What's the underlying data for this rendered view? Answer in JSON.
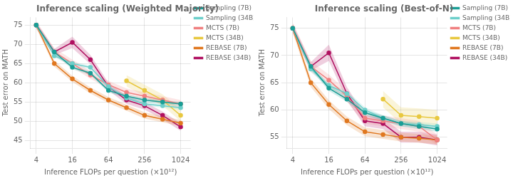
{
  "chart_data": [
    {
      "type": "line",
      "title": "Inference scaling (Weighted Majority)",
      "xlabel": "Inference FLOPs per question (×10¹²)",
      "ylabel": "Test error on MATH",
      "log": "x",
      "xlim": [
        3.2,
        1500
      ],
      "xticks": [
        4,
        16,
        64,
        256,
        1024
      ],
      "ylim": [
        43,
        77
      ],
      "yticks": [
        45,
        50,
        55,
        60,
        65,
        70,
        75
      ],
      "grid": true,
      "legend": "upper right",
      "series": [
        {
          "name": "Sampling (7B)",
          "color": "#1a9e96",
          "marker": "circle",
          "x": [
            4,
            8,
            16,
            32,
            64,
            128,
            256,
            512,
            1024
          ],
          "values": [
            75.0,
            68.0,
            64.0,
            62.5,
            58.0,
            56.5,
            55.5,
            55.0,
            54.5
          ],
          "yerr": [
            0.5,
            0.5,
            0.5,
            0.5,
            0.5,
            0.5,
            0.5,
            0.5,
            0.5
          ]
        },
        {
          "name": "Sampling (34B)",
          "color": "#6dcfca",
          "marker": "circle",
          "x": [
            4,
            8,
            16,
            32,
            64,
            128,
            256,
            512,
            1024
          ],
          "values": [
            75.0,
            67.0,
            65.0,
            64.0,
            59.0,
            56.0,
            54.5,
            54.0,
            53.5
          ],
          "yerr": [
            0.5,
            0.5,
            0.5,
            0.5,
            0.5,
            0.5,
            0.5,
            0.5,
            0.5
          ]
        },
        {
          "name": "MCTS (7B)",
          "color": "#f08080",
          "marker": "circle",
          "x": [
            4,
            8,
            16,
            32,
            64,
            128,
            256,
            512,
            1024
          ],
          "values": [
            75.0,
            68.0,
            65.0,
            62.0,
            59.5,
            57.5,
            56.5,
            55.5,
            54.5
          ],
          "yerr": [
            1.0,
            1.0,
            1.0,
            1.0,
            1.0,
            1.0,
            1.0,
            1.0,
            1.0
          ]
        },
        {
          "name": "MCTS (34B)",
          "color": "#e8c840",
          "marker": "circle",
          "x": [
            128,
            256,
            512,
            1024
          ],
          "values": [
            60.5,
            58.0,
            55.5,
            51.5
          ],
          "yerr": [
            1.5,
            1.5,
            1.5,
            1.5
          ]
        },
        {
          "name": "REBASE (7B)",
          "color": "#e07820",
          "marker": "circle",
          "x": [
            4,
            8,
            16,
            32,
            64,
            128,
            256,
            512,
            1024
          ],
          "values": [
            75.0,
            65.0,
            61.0,
            58.0,
            55.5,
            53.5,
            51.5,
            50.5,
            49.5
          ],
          "yerr": [
            0.8,
            0.8,
            0.8,
            0.8,
            0.8,
            0.8,
            0.8,
            0.8,
            0.8
          ]
        },
        {
          "name": "REBASE (34B)",
          "color": "#b01060",
          "marker": "circle",
          "x": [
            4,
            8,
            16,
            32,
            64,
            128,
            256,
            512,
            1024
          ],
          "values": [
            75.0,
            68.0,
            70.5,
            66.0,
            59.0,
            55.5,
            54.0,
            51.5,
            48.5
          ],
          "yerr": [
            0.8,
            0.8,
            1.5,
            1.2,
            1.0,
            1.0,
            1.0,
            1.0,
            1.0
          ]
        }
      ]
    },
    {
      "type": "line",
      "title": "Inference scaling (Best-of-N)",
      "xlabel": "Inference FLOPs per question (×10¹²)",
      "ylabel": "Test error on MATH",
      "log": "x",
      "xlim": [
        3.2,
        1500
      ],
      "xticks": [
        4,
        16,
        64,
        256,
        1024
      ],
      "ylim": [
        53,
        77
      ],
      "yticks": [
        55,
        60,
        65,
        70,
        75
      ],
      "grid": true,
      "legend": "upper right",
      "series": [
        {
          "name": "Sampling (7B)",
          "color": "#1a9e96",
          "marker": "circle",
          "x": [
            4,
            8,
            16,
            32,
            64,
            128,
            256,
            512,
            1024
          ],
          "values": [
            75.0,
            68.0,
            64.0,
            62.0,
            59.5,
            58.5,
            57.5,
            57.0,
            56.5
          ],
          "yerr": [
            0.5,
            0.5,
            0.5,
            0.5,
            0.5,
            0.5,
            0.5,
            0.5,
            0.5
          ]
        },
        {
          "name": "Sampling (34B)",
          "color": "#6dcfca",
          "marker": "circle",
          "x": [
            4,
            8,
            16,
            32,
            64,
            128,
            256,
            512,
            1024
          ],
          "values": [
            75.0,
            67.5,
            64.5,
            63.0,
            60.0,
            58.5,
            57.5,
            57.3,
            57.0
          ],
          "yerr": [
            0.5,
            0.5,
            0.5,
            0.5,
            0.5,
            0.5,
            0.5,
            0.5,
            0.5
          ]
        },
        {
          "name": "MCTS (7B)",
          "color": "#f08080",
          "marker": "circle",
          "x": [
            4,
            8,
            16,
            32,
            64,
            128,
            256,
            512,
            1024
          ],
          "values": [
            75.0,
            68.0,
            65.5,
            62.5,
            58.5,
            58.0,
            57.5,
            57.0,
            54.5
          ],
          "yerr": [
            1.0,
            1.0,
            1.0,
            1.0,
            1.0,
            1.0,
            1.0,
            1.0,
            1.0
          ]
        },
        {
          "name": "MCTS (34B)",
          "color": "#e8c840",
          "marker": "circle",
          "x": [
            128,
            256,
            512,
            1024
          ],
          "values": [
            62.0,
            59.0,
            58.8,
            58.5
          ],
          "yerr": [
            1.5,
            1.5,
            1.5,
            1.5
          ]
        },
        {
          "name": "REBASE (7B)",
          "color": "#e07820",
          "marker": "circle",
          "x": [
            4,
            8,
            16,
            32,
            64,
            128,
            256,
            512,
            1024
          ],
          "values": [
            75.0,
            65.0,
            61.0,
            58.0,
            56.0,
            55.5,
            55.0,
            54.8,
            54.5
          ],
          "yerr": [
            0.8,
            0.8,
            0.8,
            0.8,
            0.8,
            0.8,
            0.8,
            0.8,
            0.8
          ]
        },
        {
          "name": "REBASE (34B)",
          "color": "#b01060",
          "marker": "circle",
          "x": [
            4,
            8,
            16,
            32,
            64,
            128,
            256,
            512,
            1024
          ],
          "values": [
            75.0,
            68.0,
            70.5,
            63.0,
            58.0,
            57.5,
            55.0,
            55.0,
            54.5
          ],
          "yerr": [
            0.8,
            0.8,
            1.5,
            1.2,
            1.0,
            1.0,
            1.0,
            1.0,
            1.0
          ]
        }
      ]
    }
  ]
}
